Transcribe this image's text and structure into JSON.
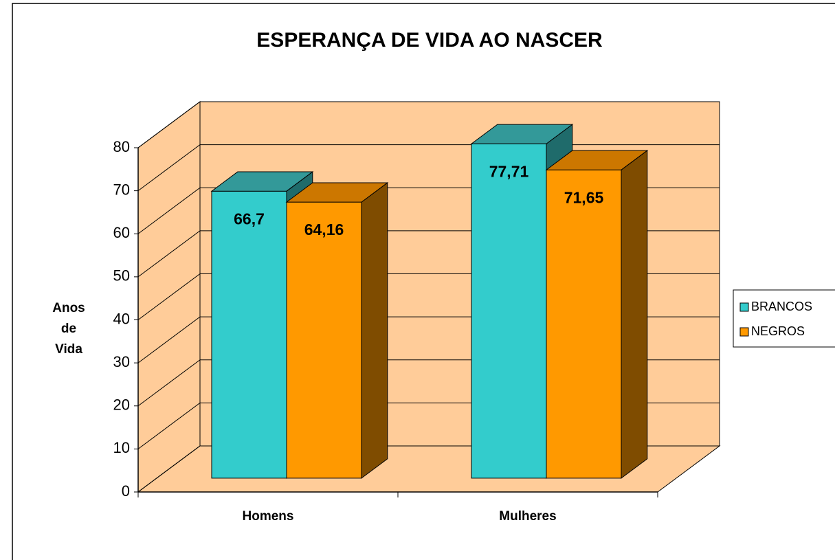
{
  "chart_data": {
    "type": "bar3d",
    "title": "ESPERANÇA DE VIDA AO NASCER",
    "y_label": "Anos de Vida",
    "categories": [
      "Homens",
      "Mulheres"
    ],
    "series": [
      {
        "name": "BRANCOS",
        "color": "#33cccc",
        "top_color": "#339999",
        "side_color": "#1f6b6b",
        "values": [
          66.7,
          77.71
        ],
        "value_labels": [
          "66,7",
          "77,71"
        ]
      },
      {
        "name": "NEGROS",
        "color": "#ff9900",
        "top_color": "#cc7700",
        "side_color": "#7f4c00",
        "values": [
          64.16,
          71.65
        ],
        "value_labels": [
          "64,16",
          "71,65"
        ]
      }
    ],
    "ylim": [
      0,
      80
    ],
    "yticks": [
      0,
      10,
      20,
      30,
      40,
      50,
      60,
      70,
      80
    ],
    "grid": true,
    "wall_color": "#ffcc99",
    "legend": "right"
  }
}
